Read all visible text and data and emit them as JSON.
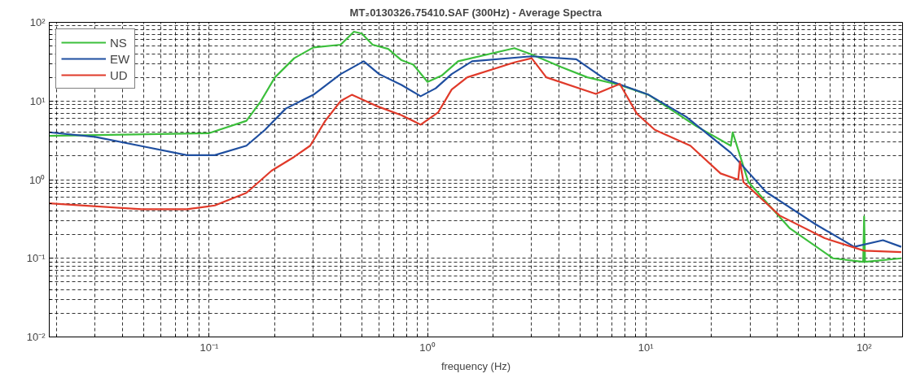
{
  "chart_data": {
    "type": "line",
    "title": "MT₂0130326₁75410.SAF (300Hz) - Average Spectra",
    "xlabel": "frequency (Hz)",
    "log": "xy",
    "grid": true,
    "legend": "top left",
    "line_style": "solid",
    "xlim": [
      0.0185,
      150
    ],
    "ylim": [
      0.01,
      100
    ],
    "xticks": [
      {
        "value": 0.1,
        "label": "10⁻¹"
      },
      {
        "value": 1,
        "label": "10⁰"
      },
      {
        "value": 10,
        "label": "10¹"
      },
      {
        "value": 100,
        "label": "10²"
      }
    ],
    "yticks": [
      {
        "value": 0.01,
        "label": "10⁻²"
      },
      {
        "value": 0.1,
        "label": "10⁻¹"
      },
      {
        "value": 1,
        "label": "10⁰"
      },
      {
        "value": 10,
        "label": "10¹"
      },
      {
        "value": 100,
        "label": "10²"
      }
    ],
    "series": [
      {
        "name": "NS",
        "color": "#3cbf3c",
        "x": [
          0.0185,
          0.1,
          0.148,
          0.171,
          0.2,
          0.245,
          0.3,
          0.4,
          0.46,
          0.5,
          0.56,
          0.66,
          0.76,
          0.86,
          1.0,
          1.16,
          1.38,
          2.5,
          3.0,
          4.1,
          5.4,
          7.6,
          10.3,
          17,
          24.5,
          25,
          29.5,
          45.7,
          72,
          99,
          100,
          101,
          148
        ],
        "values": [
          3.6,
          3.9,
          5.6,
          9.6,
          20,
          35,
          48,
          52,
          76,
          72,
          52,
          46,
          33,
          29,
          17.5,
          21,
          32,
          47,
          39,
          27,
          20,
          16,
          12,
          4.8,
          2.7,
          4.0,
          0.93,
          0.24,
          0.1,
          0.09,
          0.34,
          0.09,
          0.1
        ]
      },
      {
        "name": "EW",
        "color": "#1f4fa0",
        "x": [
          0.0185,
          0.03,
          0.048,
          0.079,
          0.106,
          0.148,
          0.18,
          0.224,
          0.3,
          0.4,
          0.51,
          0.6,
          0.76,
          0.93,
          1.09,
          1.29,
          1.6,
          3.0,
          4.8,
          6.5,
          10.3,
          15.3,
          24.5,
          35.5,
          60,
          90,
          122,
          148
        ],
        "values": [
          4.0,
          3.5,
          2.7,
          2.05,
          2.05,
          2.7,
          4.3,
          8.0,
          12,
          22,
          32,
          22,
          16,
          11.5,
          14.5,
          22,
          32,
          37,
          34,
          19,
          12,
          6.3,
          2.2,
          0.7,
          0.27,
          0.14,
          0.17,
          0.14
        ]
      },
      {
        "name": "UD",
        "color": "#e03a2a",
        "x": [
          0.0185,
          0.049,
          0.079,
          0.106,
          0.148,
          0.193,
          0.245,
          0.29,
          0.34,
          0.4,
          0.45,
          0.58,
          0.76,
          0.93,
          1.12,
          1.29,
          1.52,
          2.5,
          3.0,
          3.5,
          5.9,
          7.6,
          9.1,
          11,
          16,
          22,
          26.5,
          27,
          28,
          41,
          66,
          100,
          148
        ],
        "values": [
          0.5,
          0.42,
          0.42,
          0.47,
          0.68,
          1.3,
          1.95,
          2.7,
          5.6,
          10,
          12,
          8.7,
          6.6,
          5.0,
          7.2,
          14,
          20,
          31,
          35,
          20,
          12.3,
          16.5,
          6.9,
          4.3,
          2.7,
          1.2,
          1.0,
          1.7,
          0.93,
          0.35,
          0.18,
          0.125,
          0.12
        ]
      }
    ]
  }
}
